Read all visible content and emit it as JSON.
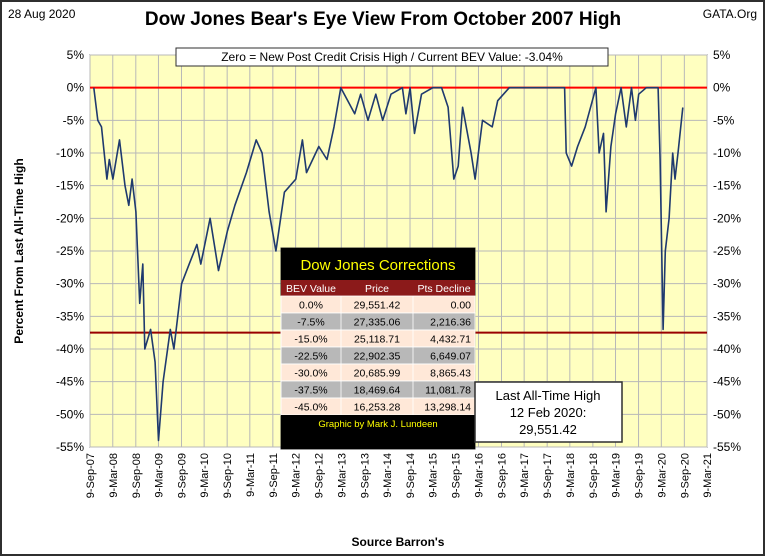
{
  "header": {
    "date": "28 Aug 2020",
    "brand": "GATA.Org"
  },
  "chart_data": {
    "type": "line",
    "title": "Dow Jones Bear's Eye View From October 2007 High",
    "subtitle": "Zero = New Post Credit Crisis High / Current BEV Value:  -3.04%",
    "ylabel": "Percent From Last All-Time High",
    "xlabel": "Source Barron's",
    "ylim": [
      -55,
      5
    ],
    "yticks": [
      5,
      0,
      -5,
      -10,
      -15,
      -20,
      -25,
      -30,
      -35,
      -40,
      -45,
      -50,
      -55
    ],
    "ytick_labels": [
      "5%",
      "0%",
      "-5%",
      "-10%",
      "-15%",
      "-20%",
      "-25%",
      "-30%",
      "-35%",
      "-40%",
      "-45%",
      "-50%",
      "-55%"
    ],
    "xlim": [
      "2007-09-09",
      "2021-03-09"
    ],
    "xtick_labels": [
      "9-Sep-07",
      "9-Mar-08",
      "9-Sep-08",
      "9-Mar-09",
      "9-Sep-09",
      "9-Mar-10",
      "9-Sep-10",
      "9-Mar-11",
      "9-Sep-11",
      "9-Mar-12",
      "9-Sep-12",
      "9-Mar-13",
      "9-Sep-13",
      "9-Mar-14",
      "9-Sep-14",
      "9-Mar-15",
      "9-Sep-15",
      "9-Mar-16",
      "9-Sep-16",
      "9-Mar-17",
      "9-Sep-17",
      "9-Mar-18",
      "9-Sep-18",
      "9-Mar-19",
      "9-Sep-19",
      "9-Mar-20",
      "9-Sep-20",
      "9-Mar-21"
    ],
    "grid": true,
    "reference_lines": [
      {
        "y": 0,
        "color": "#ff0000"
      },
      {
        "y": -37.5,
        "color": "#990000"
      }
    ],
    "series": [
      {
        "color": "#1f3a6e",
        "x": [
          "2007-10-09",
          "2007-11-10",
          "2007-12-10",
          "2008-01-22",
          "2008-02-10",
          "2008-03-10",
          "2008-05-02",
          "2008-06-15",
          "2008-07-15",
          "2008-08-10",
          "2008-09-10",
          "2008-10-10",
          "2008-11-04",
          "2008-11-20",
          "2009-01-05",
          "2009-02-10",
          "2009-03-09",
          "2009-04-15",
          "2009-06-12",
          "2009-07-10",
          "2009-09-10",
          "2009-11-10",
          "2010-01-10",
          "2010-02-10",
          "2010-04-26",
          "2010-07-02",
          "2010-09-10",
          "2010-11-10",
          "2011-02-10",
          "2011-04-29",
          "2011-06-15",
          "2011-08-10",
          "2011-10-03",
          "2011-12-10",
          "2012-03-10",
          "2012-05-02",
          "2012-06-04",
          "2012-09-10",
          "2012-11-15",
          "2013-01-10",
          "2013-03-05",
          "2013-06-24",
          "2013-08-10",
          "2013-10-08",
          "2013-12-10",
          "2014-02-03",
          "2014-04-10",
          "2014-07-10",
          "2014-08-07",
          "2014-09-10",
          "2014-10-15",
          "2014-12-10",
          "2015-03-10",
          "2015-05-19",
          "2015-07-10",
          "2015-08-25",
          "2015-09-29",
          "2015-11-03",
          "2016-01-10",
          "2016-02-11",
          "2016-04-10",
          "2016-06-27",
          "2016-08-10",
          "2016-11-10",
          "2017-03-01",
          "2017-06-10",
          "2017-09-10",
          "2018-01-26",
          "2018-02-08",
          "2018-03-23",
          "2018-05-10",
          "2018-07-10",
          "2018-10-03",
          "2018-10-29",
          "2018-12-03",
          "2018-12-24",
          "2019-01-31",
          "2019-03-10",
          "2019-04-23",
          "2019-06-03",
          "2019-07-15",
          "2019-08-15",
          "2019-09-10",
          "2019-11-10",
          "2020-01-10",
          "2020-02-12",
          "2020-02-28",
          "2020-03-23",
          "2020-04-10",
          "2020-05-10",
          "2020-06-08",
          "2020-06-26",
          "2020-07-20",
          "2020-08-28"
        ],
        "y": [
          0,
          -5,
          -6,
          -14,
          -11,
          -14,
          -8,
          -15,
          -18,
          -14,
          -19,
          -33,
          -27,
          -40,
          -37,
          -42,
          -54,
          -45,
          -37,
          -40,
          -30,
          -27,
          -24,
          -27,
          -20,
          -28,
          -22,
          -18,
          -13,
          -8,
          -10,
          -19,
          -25,
          -16,
          -14,
          -8,
          -13,
          -9,
          -11,
          -6,
          0,
          -4,
          -1,
          -5,
          -1,
          -5,
          -1,
          0,
          -4,
          0,
          -7,
          -1,
          0,
          0,
          -3,
          -14,
          -12,
          -3,
          -10,
          -14,
          -5,
          -6,
          -2,
          0,
          0,
          0,
          0,
          0,
          -10,
          -12,
          -9,
          -6,
          0,
          -10,
          -7,
          -19,
          -9,
          -4,
          0,
          -6,
          0,
          -5,
          -1,
          0,
          0,
          0,
          -11,
          -37,
          -25,
          -20,
          -10,
          -14,
          -10,
          -3.04
        ]
      }
    ],
    "table": {
      "title": "Dow Jones Corrections",
      "columns": [
        "BEV Value",
        "Price",
        "Pts Decline"
      ],
      "rows": [
        [
          "0.0%",
          "29,551.42",
          "0.00"
        ],
        [
          "-7.5%",
          "27,335.06",
          "2,216.36"
        ],
        [
          "-15.0%",
          "25,118.71",
          "4,432.71"
        ],
        [
          "-22.5%",
          "22,902.35",
          "6,649.07"
        ],
        [
          "-30.0%",
          "20,685.99",
          "8,865.43"
        ],
        [
          "-37.5%",
          "18,469.64",
          "11,081.78"
        ],
        [
          "-45.0%",
          "16,253.28",
          "13,298.14"
        ]
      ],
      "credit": "Graphic by Mark J. Lundeen"
    },
    "annotation": {
      "lines": [
        "Last All-Time High",
        "12 Feb 2020:",
        "29,551.42"
      ]
    },
    "colors": {
      "plot_bg": "#ffffc0",
      "border": "#2f2f2f",
      "grid": "#b8b8b8",
      "table_header_bg": "#000000",
      "table_row_light": "#ffe8d8",
      "table_row_dark": "#b8b8b8",
      "table_colhead_bg": "#8b1a1a"
    }
  }
}
